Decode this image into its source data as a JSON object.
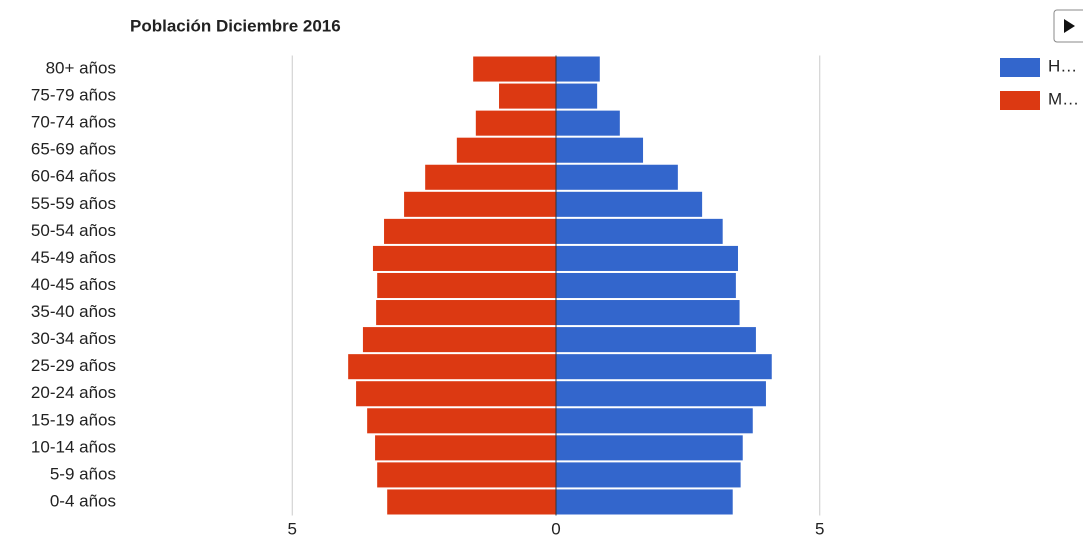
{
  "chart_data": {
    "type": "pyramid",
    "title": "Población Diciembre 2016",
    "categories": [
      "80+ años",
      "75-79 años",
      "70-74 años",
      "65-69 años",
      "60-64 años",
      "55-59 años",
      "50-54 años",
      "45-49 años",
      "40-45 años",
      "35-40 años",
      "30-34 años",
      "25-29 años",
      "20-24 años",
      "15-19 años",
      "10-14 años",
      "5-9 años",
      "0-4 años"
    ],
    "series": [
      {
        "name": "H…",
        "color": "#3366cc",
        "values": [
          0.83,
          0.78,
          1.21,
          1.65,
          2.31,
          2.77,
          3.16,
          3.45,
          3.41,
          3.48,
          3.79,
          4.09,
          3.98,
          3.73,
          3.54,
          3.5,
          3.35
        ]
      },
      {
        "name": "M…",
        "color": "#dc3912",
        "values": [
          -1.57,
          -1.08,
          -1.52,
          -1.88,
          -2.48,
          -2.88,
          -3.26,
          -3.47,
          -3.39,
          -3.41,
          -3.66,
          -3.94,
          -3.79,
          -3.58,
          -3.43,
          -3.39,
          -3.2
        ]
      }
    ],
    "xlim": [
      -8,
      8
    ],
    "xticks": [
      {
        "value": -5,
        "label": "5"
      },
      0,
      5
    ],
    "grid": true,
    "legend": "right"
  }
}
